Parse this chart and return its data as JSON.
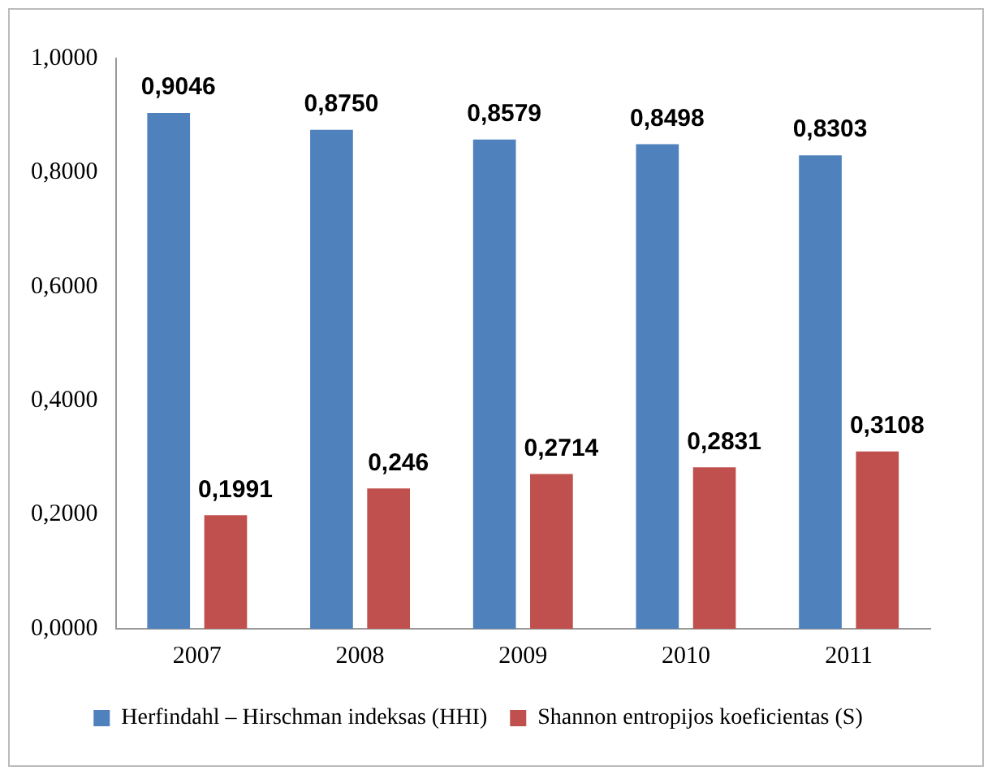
{
  "chart_data": {
    "type": "bar",
    "categories": [
      "2007",
      "2008",
      "2009",
      "2010",
      "2011"
    ],
    "series": [
      {
        "name": "Herfindahl – Hirschman indeksas (HHI)",
        "color": "#4f81bd",
        "values": [
          0.9046,
          0.875,
          0.8579,
          0.8498,
          0.8303
        ],
        "value_labels": [
          "0,9046",
          "0,8750",
          "0,8579",
          "0,8498",
          "0,8303"
        ]
      },
      {
        "name": "Shannon entropijos koeficientas (S)",
        "color": "#c0504d",
        "values": [
          0.1991,
          0.246,
          0.2714,
          0.2831,
          0.3108
        ],
        "value_labels": [
          "0,1991",
          "0,246",
          "0,2714",
          "0,2831",
          "0,3108"
        ]
      }
    ],
    "ylim": [
      0,
      1
    ],
    "yticks": [
      {
        "value": 0,
        "label": "0,0000"
      },
      {
        "value": 0.2,
        "label": "0,2000"
      },
      {
        "value": 0.4,
        "label": "0,4000"
      },
      {
        "value": 0.6,
        "label": "0,6000"
      },
      {
        "value": 0.8,
        "label": "0,8000"
      },
      {
        "value": 1,
        "label": "1,0000"
      }
    ],
    "grid": false,
    "legend": "bottom"
  }
}
